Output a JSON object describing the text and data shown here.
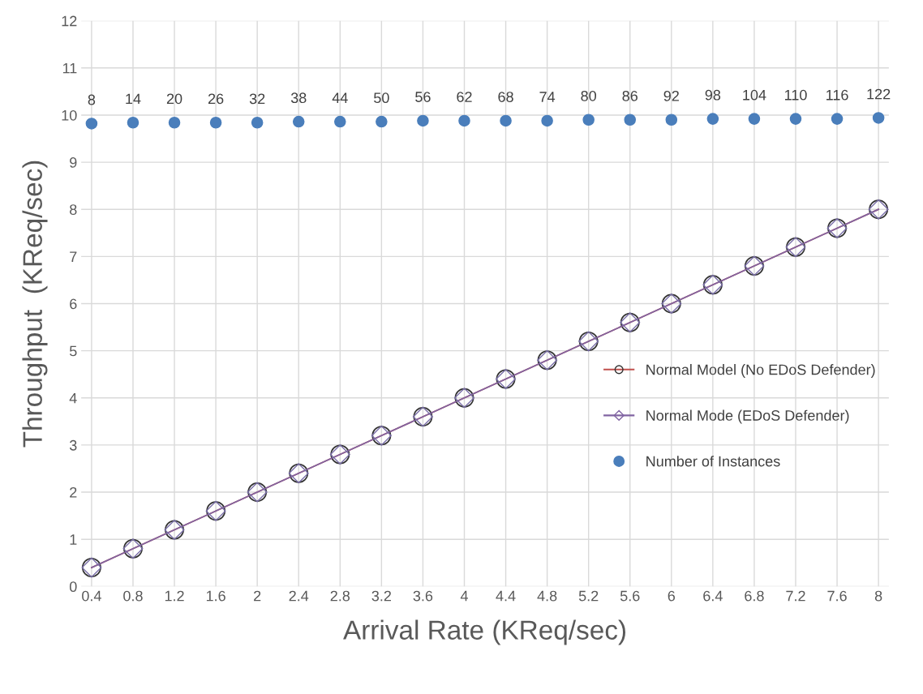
{
  "chart_data": {
    "type": "line",
    "xlabel": "Arrival Rate (KReq/sec)",
    "ylabel": "Throughput  (KReq/sec)",
    "categories": [
      "0.4",
      "0.8",
      "1.2",
      "1.6",
      "2",
      "2.4",
      "2.8",
      "3.2",
      "3.6",
      "4",
      "4.4",
      "4.8",
      "5.2",
      "5.6",
      "6",
      "6.4",
      "6.8",
      "7.2",
      "7.6",
      "8"
    ],
    "series": [
      {
        "name": "Normal Model (No EDoS Defender)",
        "color": "#c0504d",
        "marker": "circle",
        "values": [
          0.4,
          0.8,
          1.2,
          1.6,
          2,
          2.4,
          2.8,
          3.2,
          3.6,
          4,
          4.4,
          4.8,
          5.2,
          5.6,
          6,
          6.4,
          6.8,
          7.2,
          7.6,
          8
        ]
      },
      {
        "name": "Normal Mode (EDoS Defender)",
        "color": "#8064a2",
        "marker": "diamond",
        "values": [
          0.4,
          0.8,
          1.2,
          1.6,
          2,
          2.4,
          2.8,
          3.2,
          3.6,
          4,
          4.4,
          4.8,
          5.2,
          5.6,
          6,
          6.4,
          6.8,
          7.2,
          7.6,
          8
        ]
      },
      {
        "name": "Number of Instances",
        "type": "scatter",
        "color": "#4a7ebb",
        "marker": "circle",
        "x": [
          "0.4",
          "0.8",
          "1.2",
          "1.6",
          "2",
          "2.4",
          "2.8",
          "3.2",
          "3.6",
          "4",
          "4.4",
          "4.8",
          "5.2",
          "5.6",
          "6",
          "6.4",
          "6.8",
          "7.2",
          "7.6",
          "8"
        ],
        "values": [
          9.82,
          9.84,
          9.84,
          9.84,
          9.84,
          9.86,
          9.86,
          9.86,
          9.88,
          9.88,
          9.88,
          9.88,
          9.9,
          9.9,
          9.9,
          9.92,
          9.92,
          9.92,
          9.92,
          9.94
        ]
      }
    ],
    "annotations": [
      {
        "text": "8",
        "x": "0.4",
        "y": 9.82
      },
      {
        "text": "14",
        "x": "0.8",
        "y": 9.84
      },
      {
        "text": "20",
        "x": "1.2",
        "y": 9.84
      },
      {
        "text": "26",
        "x": "1.6",
        "y": 9.84
      },
      {
        "text": "32",
        "x": "2",
        "y": 9.84
      },
      {
        "text": "38",
        "x": "2.4",
        "y": 9.86
      },
      {
        "text": "44",
        "x": "2.8",
        "y": 9.86
      },
      {
        "text": "50",
        "x": "3.2",
        "y": 9.86
      },
      {
        "text": "56",
        "x": "3.6",
        "y": 9.88
      },
      {
        "text": "62",
        "x": "4",
        "y": 9.88
      },
      {
        "text": "68",
        "x": "4.4",
        "y": 9.88
      },
      {
        "text": "74",
        "x": "4.8",
        "y": 9.88
      },
      {
        "text": "80",
        "x": "5.2",
        "y": 9.9
      },
      {
        "text": "86",
        "x": "5.6",
        "y": 9.9
      },
      {
        "text": "92",
        "x": "6",
        "y": 9.9
      },
      {
        "text": "98",
        "x": "6.4",
        "y": 9.92
      },
      {
        "text": "104",
        "x": "6.8",
        "y": 9.92
      },
      {
        "text": "110",
        "x": "7.2",
        "y": 9.92
      },
      {
        "text": "116",
        "x": "7.6",
        "y": 9.92
      },
      {
        "text": "122",
        "x": "8",
        "y": 9.94
      }
    ],
    "ylim": [
      0,
      12
    ],
    "yticks": [
      0,
      1,
      2,
      3,
      4,
      5,
      6,
      7,
      8,
      9,
      10,
      11,
      12
    ],
    "grid": true,
    "legend": "right"
  }
}
